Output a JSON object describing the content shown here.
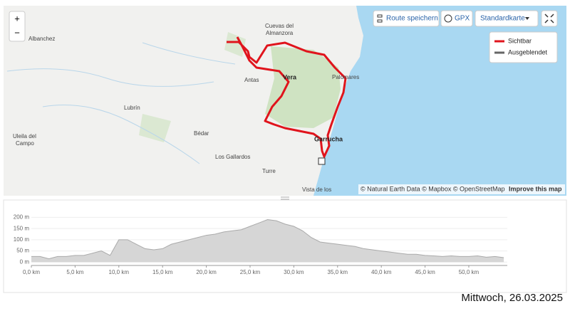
{
  "map": {
    "places": [
      "Cuevas del",
      "Almanzora",
      "Albanchez",
      "Vera",
      "Antas",
      "Palomares",
      "Lubrín",
      "Bédar",
      "Uleila del",
      "Campo",
      "Garrucha",
      "Los Gallardos",
      "Turre",
      "Vista de los"
    ],
    "zoom_in": "+",
    "zoom_out": "−",
    "toolbar": [
      "Route speichern",
      "GPX",
      "Standardkarte"
    ],
    "legend": [
      {
        "name": "Sichtbar",
        "color": "#e0141c"
      },
      {
        "name": "Ausgeblendet",
        "color": "#666666"
      }
    ],
    "attribution": "© Natural Earth Data © Mapbox © OpenStreetMap",
    "improve": "Improve this map"
  },
  "chart_data": {
    "type": "area",
    "color": "#d6d6d6",
    "line_color": "#aaaaaa",
    "grid": true,
    "x": [
      0,
      1,
      2,
      3,
      4,
      5,
      6,
      7,
      8,
      9,
      10,
      11,
      12,
      13,
      14,
      15,
      16,
      17,
      18,
      19,
      20,
      21,
      22,
      23,
      24,
      25,
      26,
      27,
      28,
      29,
      30,
      31,
      32,
      33,
      34,
      35,
      36,
      37,
      38,
      39,
      40,
      41,
      42,
      43,
      44,
      45,
      46,
      47,
      48,
      49,
      50,
      51,
      52,
      53,
      54
    ],
    "values": [
      25,
      25,
      15,
      25,
      25,
      30,
      30,
      40,
      50,
      30,
      100,
      100,
      80,
      60,
      55,
      60,
      80,
      90,
      100,
      110,
      120,
      125,
      135,
      140,
      145,
      160,
      175,
      190,
      185,
      170,
      160,
      140,
      110,
      90,
      85,
      80,
      75,
      70,
      60,
      55,
      50,
      45,
      40,
      35,
      35,
      30,
      28,
      25,
      28,
      25,
      25,
      28,
      22,
      25,
      20
    ],
    "xlim": [
      0,
      54.4
    ],
    "ylim": [
      -15,
      230
    ],
    "xticks": [
      {
        "value": 0,
        "label": "0,0 km"
      },
      {
        "value": 5,
        "label": "5,0 km"
      },
      {
        "value": 10,
        "label": "10,0 km"
      },
      {
        "value": 15,
        "label": "15,0 km"
      },
      {
        "value": 20,
        "label": "20,0 km"
      },
      {
        "value": 25,
        "label": "25,0 km"
      },
      {
        "value": 30,
        "label": "30,0 km"
      },
      {
        "value": 35,
        "label": "35,0 km"
      },
      {
        "value": 40,
        "label": "40,0 km"
      },
      {
        "value": 45,
        "label": "45,0 km"
      },
      {
        "value": 50,
        "label": "50,0 km"
      }
    ],
    "yticks": [
      {
        "value": 0,
        "label": "0 m"
      },
      {
        "value": 50,
        "label": "50 m"
      },
      {
        "value": 100,
        "label": "100 m"
      },
      {
        "value": 150,
        "label": "150 m"
      },
      {
        "value": 200,
        "label": "200 m"
      }
    ]
  },
  "footer": {
    "date": "Mittwoch, 26.03.2025"
  }
}
